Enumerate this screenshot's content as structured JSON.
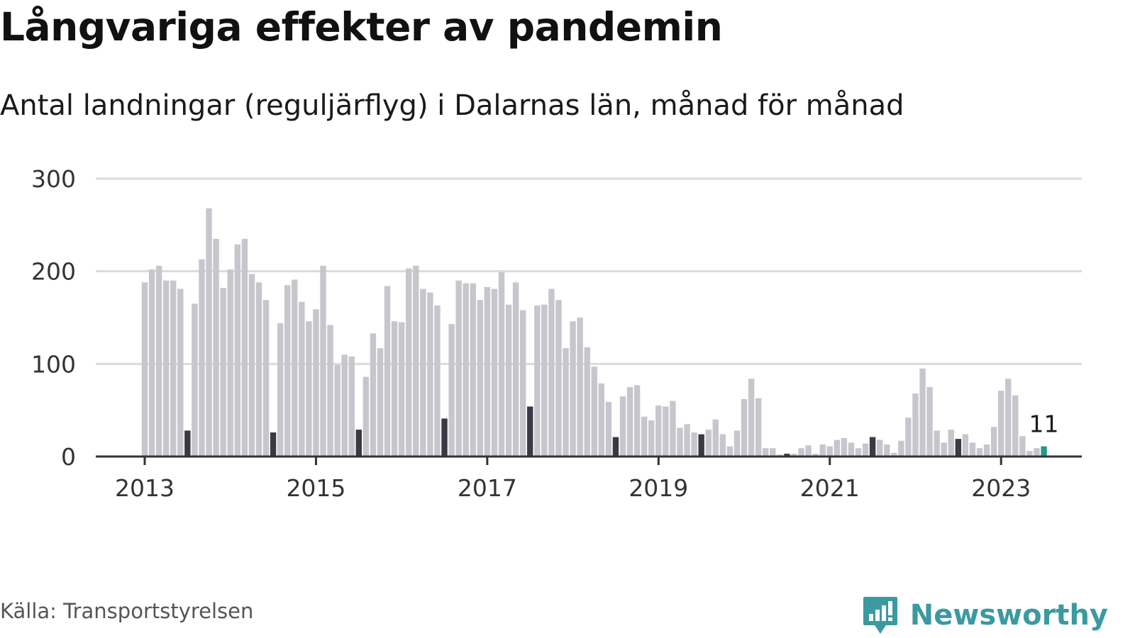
{
  "title": "Långvariga effekter av pandemin",
  "subtitle": "Antal landningar (reguljärflyg) i Dalarnas län, månad för månad",
  "source": "Källa: Transportstyrelsen",
  "brand": "Newsworthy",
  "colors": {
    "bar": "#c6c6cc",
    "highlight": "#3a3a45",
    "latest": "#1d9a8d",
    "grid": "#dcdcdc",
    "axis": "#333333",
    "brand": "#3a9aa0"
  },
  "chart_data": {
    "type": "bar",
    "start": "2013-01",
    "highlight_month": "July",
    "ylim": [
      0,
      300
    ],
    "yticks": [
      0,
      100,
      200,
      300
    ],
    "xticks": [
      "2013",
      "2015",
      "2017",
      "2019",
      "2021",
      "2023"
    ],
    "last_value_label": "11",
    "grid": true,
    "values": [
      188,
      202,
      206,
      190,
      190,
      181,
      28,
      165,
      213,
      268,
      235,
      182,
      202,
      229,
      235,
      197,
      188,
      169,
      26,
      144,
      185,
      191,
      167,
      146,
      159,
      206,
      142,
      99,
      110,
      108,
      29,
      86,
      133,
      117,
      184,
      146,
      145,
      203,
      206,
      181,
      177,
      163,
      41,
      143,
      190,
      187,
      187,
      169,
      183,
      181,
      199,
      164,
      188,
      158,
      54,
      163,
      164,
      181,
      169,
      117,
      146,
      150,
      118,
      97,
      79,
      59,
      21,
      65,
      75,
      77,
      43,
      39,
      55,
      54,
      60,
      31,
      35,
      26,
      24,
      29,
      40,
      24,
      11,
      28,
      62,
      84,
      63,
      9,
      9,
      2,
      3,
      3,
      9,
      12,
      3,
      13,
      11,
      18,
      20,
      15,
      9,
      14,
      21,
      18,
      13,
      4,
      17,
      42,
      68,
      95,
      75,
      28,
      15,
      29,
      19,
      24,
      15,
      9,
      13,
      32,
      71,
      84,
      66,
      22,
      6,
      9,
      11
    ]
  }
}
